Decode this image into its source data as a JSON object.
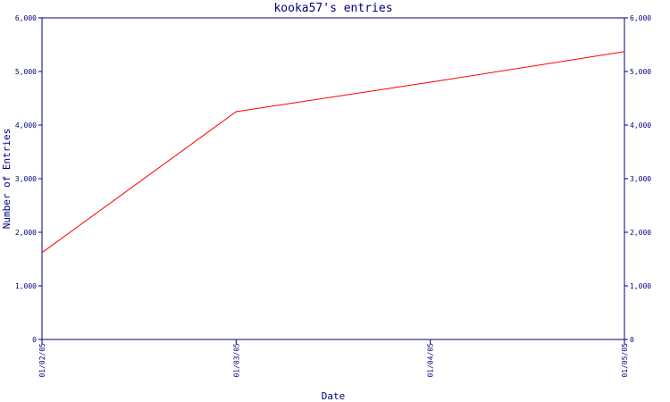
{
  "chart_data": {
    "type": "line",
    "title": "kooka57's entries",
    "xlabel": "Date",
    "ylabel": "Number of Entries",
    "x_ticks": [
      "01/02/05",
      "01/03/05",
      "01/04/05",
      "01/05/05"
    ],
    "y_ticks": [
      "0",
      "1,000",
      "2,000",
      "3,000",
      "4,000",
      "5,000",
      "6,000"
    ],
    "y_right_ticks": [
      "0",
      "1,000",
      "2,000",
      "3,000",
      "4,000",
      "5,000",
      "6,000"
    ],
    "ylim": [
      0,
      6000
    ],
    "xlim": [
      "2005-01-02",
      "2005-01-05"
    ],
    "grid": false,
    "series": [
      {
        "x": [
          "2005-01-02",
          "2005-01-03",
          "2005-01-04",
          "2005-01-05"
        ],
        "values": [
          1620,
          4250,
          4800,
          5370
        ]
      }
    ],
    "colors": {
      "axis": "#000080",
      "line": "#ff0000",
      "text": "#000080"
    }
  }
}
